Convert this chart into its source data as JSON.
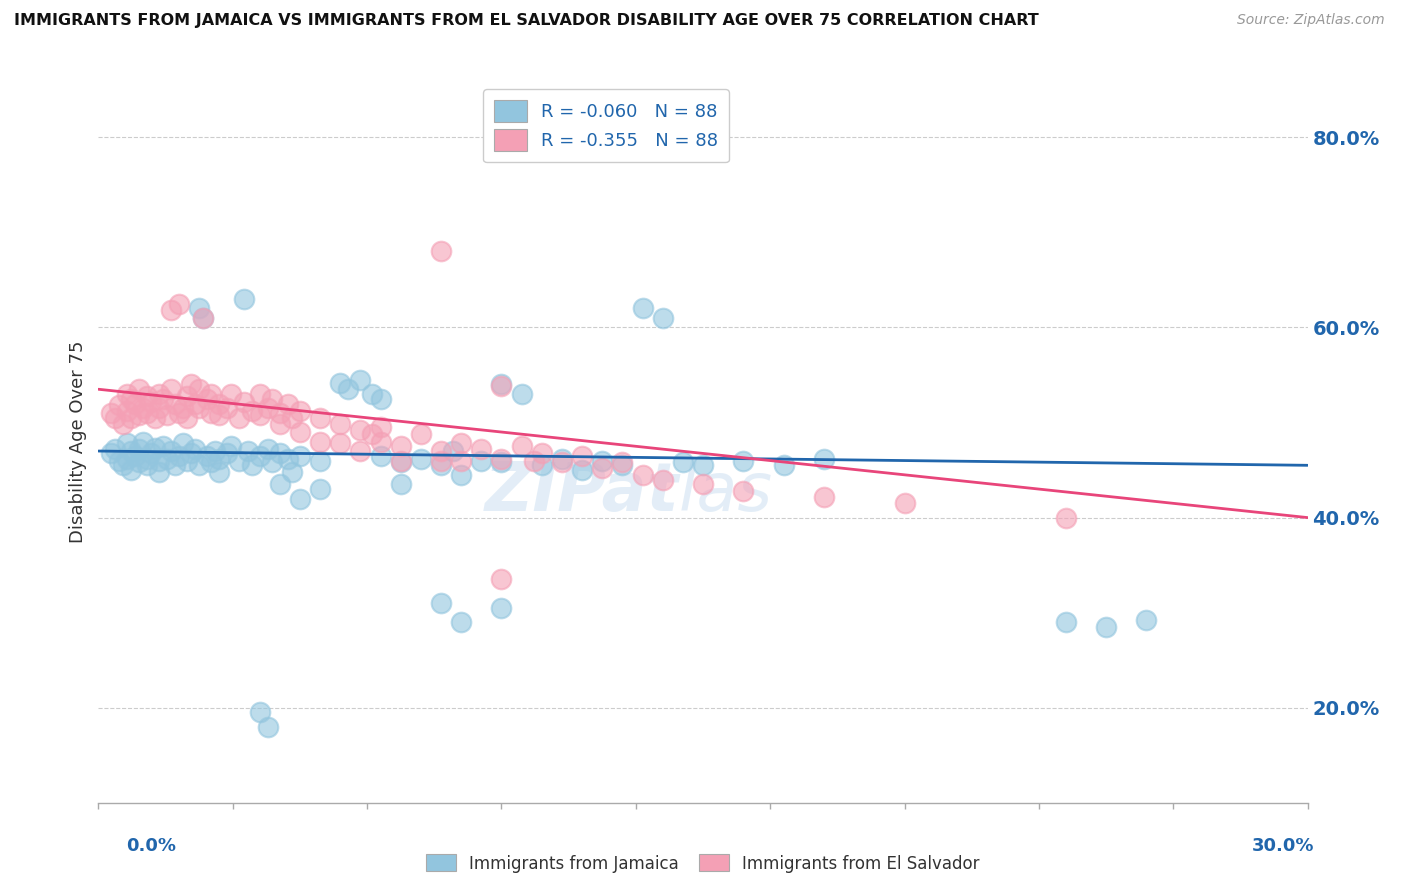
{
  "title": "IMMIGRANTS FROM JAMAICA VS IMMIGRANTS FROM EL SALVADOR DISABILITY AGE OVER 75 CORRELATION CHART",
  "source": "Source: ZipAtlas.com",
  "ylabel": "Disability Age Over 75",
  "ylabel_right_ticks": [
    "80.0%",
    "60.0%",
    "40.0%",
    "20.0%"
  ],
  "ylabel_right_vals": [
    0.8,
    0.6,
    0.4,
    0.2
  ],
  "xlim": [
    0.0,
    0.3
  ],
  "ylim": [
    0.1,
    0.86
  ],
  "jamaica_color": "#92c5de",
  "jamaica_line_color": "#2166ac",
  "el_salvador_color": "#f4a0b5",
  "el_salvador_line_color": "#e8457a",
  "legend_label_jamaica": "R = -0.060   N = 88",
  "legend_label_el_salvador": "R = -0.355   N = 88",
  "watermark": "ZIPat las",
  "jamaica_scatter": [
    [
      0.003,
      0.468
    ],
    [
      0.004,
      0.472
    ],
    [
      0.005,
      0.46
    ],
    [
      0.006,
      0.455
    ],
    [
      0.007,
      0.462
    ],
    [
      0.007,
      0.478
    ],
    [
      0.008,
      0.47
    ],
    [
      0.008,
      0.45
    ],
    [
      0.009,
      0.465
    ],
    [
      0.01,
      0.472
    ],
    [
      0.01,
      0.458
    ],
    [
      0.011,
      0.48
    ],
    [
      0.012,
      0.462
    ],
    [
      0.012,
      0.455
    ],
    [
      0.013,
      0.468
    ],
    [
      0.014,
      0.473
    ],
    [
      0.015,
      0.46
    ],
    [
      0.015,
      0.448
    ],
    [
      0.016,
      0.475
    ],
    [
      0.017,
      0.462
    ],
    [
      0.018,
      0.47
    ],
    [
      0.019,
      0.455
    ],
    [
      0.02,
      0.465
    ],
    [
      0.021,
      0.478
    ],
    [
      0.022,
      0.46
    ],
    [
      0.023,
      0.468
    ],
    [
      0.024,
      0.472
    ],
    [
      0.025,
      0.455
    ],
    [
      0.025,
      0.62
    ],
    [
      0.026,
      0.61
    ],
    [
      0.027,
      0.465
    ],
    [
      0.028,
      0.458
    ],
    [
      0.029,
      0.47
    ],
    [
      0.03,
      0.462
    ],
    [
      0.03,
      0.448
    ],
    [
      0.032,
      0.468
    ],
    [
      0.033,
      0.475
    ],
    [
      0.035,
      0.46
    ],
    [
      0.036,
      0.63
    ],
    [
      0.037,
      0.47
    ],
    [
      0.038,
      0.455
    ],
    [
      0.04,
      0.465
    ],
    [
      0.042,
      0.472
    ],
    [
      0.043,
      0.458
    ],
    [
      0.045,
      0.468
    ],
    [
      0.045,
      0.435
    ],
    [
      0.047,
      0.462
    ],
    [
      0.048,
      0.448
    ],
    [
      0.05,
      0.465
    ],
    [
      0.05,
      0.42
    ],
    [
      0.055,
      0.46
    ],
    [
      0.055,
      0.43
    ],
    [
      0.06,
      0.542
    ],
    [
      0.062,
      0.535
    ],
    [
      0.065,
      0.545
    ],
    [
      0.068,
      0.53
    ],
    [
      0.07,
      0.525
    ],
    [
      0.07,
      0.465
    ],
    [
      0.075,
      0.458
    ],
    [
      0.075,
      0.435
    ],
    [
      0.08,
      0.462
    ],
    [
      0.085,
      0.455
    ],
    [
      0.088,
      0.47
    ],
    [
      0.09,
      0.445
    ],
    [
      0.095,
      0.46
    ],
    [
      0.1,
      0.54
    ],
    [
      0.1,
      0.458
    ],
    [
      0.105,
      0.53
    ],
    [
      0.11,
      0.455
    ],
    [
      0.115,
      0.462
    ],
    [
      0.12,
      0.45
    ],
    [
      0.125,
      0.46
    ],
    [
      0.13,
      0.455
    ],
    [
      0.135,
      0.62
    ],
    [
      0.14,
      0.61
    ],
    [
      0.145,
      0.458
    ],
    [
      0.15,
      0.455
    ],
    [
      0.16,
      0.46
    ],
    [
      0.17,
      0.455
    ],
    [
      0.18,
      0.462
    ],
    [
      0.04,
      0.195
    ],
    [
      0.042,
      0.18
    ],
    [
      0.085,
      0.31
    ],
    [
      0.09,
      0.29
    ],
    [
      0.1,
      0.305
    ],
    [
      0.24,
      0.29
    ],
    [
      0.25,
      0.285
    ],
    [
      0.26,
      0.292
    ]
  ],
  "el_salvador_scatter": [
    [
      0.003,
      0.51
    ],
    [
      0.004,
      0.505
    ],
    [
      0.005,
      0.518
    ],
    [
      0.006,
      0.498
    ],
    [
      0.007,
      0.53
    ],
    [
      0.007,
      0.512
    ],
    [
      0.008,
      0.525
    ],
    [
      0.008,
      0.505
    ],
    [
      0.009,
      0.52
    ],
    [
      0.01,
      0.508
    ],
    [
      0.01,
      0.535
    ],
    [
      0.011,
      0.515
    ],
    [
      0.012,
      0.528
    ],
    [
      0.012,
      0.51
    ],
    [
      0.013,
      0.522
    ],
    [
      0.014,
      0.505
    ],
    [
      0.015,
      0.53
    ],
    [
      0.015,
      0.515
    ],
    [
      0.016,
      0.525
    ],
    [
      0.017,
      0.508
    ],
    [
      0.018,
      0.618
    ],
    [
      0.018,
      0.535
    ],
    [
      0.019,
      0.52
    ],
    [
      0.02,
      0.51
    ],
    [
      0.02,
      0.625
    ],
    [
      0.021,
      0.515
    ],
    [
      0.022,
      0.528
    ],
    [
      0.022,
      0.505
    ],
    [
      0.023,
      0.54
    ],
    [
      0.024,
      0.52
    ],
    [
      0.025,
      0.515
    ],
    [
      0.025,
      0.535
    ],
    [
      0.026,
      0.61
    ],
    [
      0.027,
      0.525
    ],
    [
      0.028,
      0.51
    ],
    [
      0.028,
      0.53
    ],
    [
      0.03,
      0.52
    ],
    [
      0.03,
      0.508
    ],
    [
      0.032,
      0.515
    ],
    [
      0.033,
      0.53
    ],
    [
      0.035,
      0.505
    ],
    [
      0.036,
      0.522
    ],
    [
      0.038,
      0.512
    ],
    [
      0.04,
      0.508
    ],
    [
      0.04,
      0.53
    ],
    [
      0.042,
      0.515
    ],
    [
      0.043,
      0.525
    ],
    [
      0.045,
      0.51
    ],
    [
      0.045,
      0.498
    ],
    [
      0.047,
      0.52
    ],
    [
      0.048,
      0.505
    ],
    [
      0.05,
      0.512
    ],
    [
      0.05,
      0.49
    ],
    [
      0.055,
      0.505
    ],
    [
      0.055,
      0.48
    ],
    [
      0.06,
      0.498
    ],
    [
      0.06,
      0.478
    ],
    [
      0.065,
      0.492
    ],
    [
      0.065,
      0.47
    ],
    [
      0.068,
      0.488
    ],
    [
      0.07,
      0.48
    ],
    [
      0.07,
      0.495
    ],
    [
      0.075,
      0.475
    ],
    [
      0.075,
      0.46
    ],
    [
      0.08,
      0.488
    ],
    [
      0.085,
      0.47
    ],
    [
      0.085,
      0.46
    ],
    [
      0.09,
      0.478
    ],
    [
      0.09,
      0.46
    ],
    [
      0.095,
      0.472
    ],
    [
      0.1,
      0.538
    ],
    [
      0.1,
      0.462
    ],
    [
      0.105,
      0.475
    ],
    [
      0.108,
      0.46
    ],
    [
      0.11,
      0.468
    ],
    [
      0.115,
      0.458
    ],
    [
      0.12,
      0.465
    ],
    [
      0.125,
      0.452
    ],
    [
      0.13,
      0.458
    ],
    [
      0.135,
      0.445
    ],
    [
      0.1,
      0.335
    ],
    [
      0.14,
      0.44
    ],
    [
      0.15,
      0.435
    ],
    [
      0.16,
      0.428
    ],
    [
      0.18,
      0.422
    ],
    [
      0.2,
      0.415
    ],
    [
      0.085,
      0.68
    ],
    [
      0.24,
      0.4
    ]
  ]
}
